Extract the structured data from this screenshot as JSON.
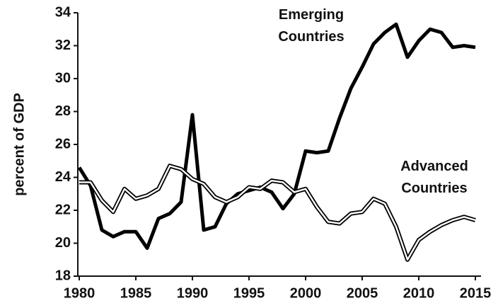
{
  "chart_data": {
    "type": "line",
    "y_label": "percent of GDP",
    "x": [
      1980,
      1981,
      1982,
      1983,
      1984,
      1985,
      1986,
      1987,
      1988,
      1989,
      1990,
      1991,
      1992,
      1993,
      1994,
      1995,
      1996,
      1997,
      1998,
      1999,
      2000,
      2001,
      2002,
      2003,
      2004,
      2005,
      2006,
      2007,
      2008,
      2009,
      2010,
      2011,
      2012,
      2013,
      2014,
      2015
    ],
    "series": [
      {
        "name": "Emerging Countries",
        "color": "#000000",
        "style": "solid",
        "values": [
          24.6,
          23.5,
          20.8,
          20.4,
          20.7,
          20.7,
          19.7,
          21.5,
          21.8,
          22.5,
          27.8,
          20.8,
          21.0,
          22.4,
          23.0,
          23.2,
          23.4,
          23.1,
          22.1,
          23.0,
          25.6,
          25.5,
          25.6,
          27.6,
          29.4,
          30.7,
          32.1,
          32.8,
          33.3,
          31.3,
          32.3,
          33.0,
          32.8,
          31.9,
          32.0,
          31.9
        ]
      },
      {
        "name": "Advanced Countries",
        "color": "#000000",
        "style": "double",
        "values": [
          23.7,
          23.7,
          22.6,
          21.9,
          23.3,
          22.7,
          22.9,
          23.3,
          24.7,
          24.5,
          23.9,
          23.6,
          22.8,
          22.5,
          22.8,
          23.4,
          23.3,
          23.8,
          23.7,
          23.1,
          23.3,
          22.2,
          21.3,
          21.2,
          21.8,
          21.9,
          22.7,
          22.4,
          21.0,
          19.0,
          20.2,
          20.7,
          21.1,
          21.4,
          21.6,
          21.4
        ]
      }
    ],
    "xlim": [
      1980,
      2015
    ],
    "xticks": [
      1980,
      1985,
      1990,
      1995,
      2000,
      2005,
      2010,
      2015
    ],
    "ylim": [
      18,
      34
    ],
    "yticks": [
      18,
      20,
      22,
      24,
      26,
      28,
      30,
      32,
      34
    ],
    "grid": false
  }
}
